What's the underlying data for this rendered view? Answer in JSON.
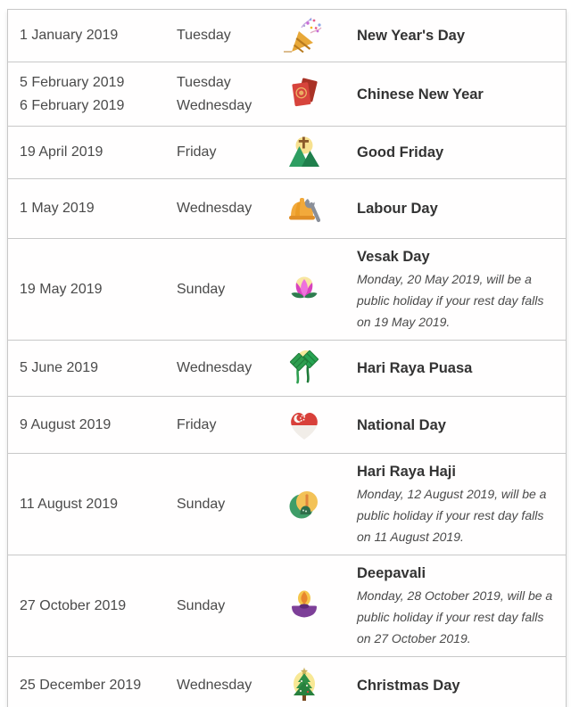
{
  "page": {
    "background_color": "#ffffff",
    "border_color": "#c8c8c8",
    "text_color": "#4a4a4a",
    "title_color": "#333333"
  },
  "table": {
    "rows": [
      {
        "dates": [
          "1 January 2019"
        ],
        "days": [
          "Tuesday"
        ],
        "icon": "party-popper-icon",
        "name": "New Year's Day",
        "note": ""
      },
      {
        "dates": [
          "5 February 2019",
          "6 February 2019"
        ],
        "days": [
          "Tuesday",
          "Wednesday"
        ],
        "icon": "red-envelopes-icon",
        "name": "Chinese New Year",
        "note": ""
      },
      {
        "dates": [
          "19 April 2019"
        ],
        "days": [
          "Friday"
        ],
        "icon": "mountain-cross-icon",
        "name": "Good Friday",
        "note": ""
      },
      {
        "dates": [
          "1 May 2019"
        ],
        "days": [
          "Wednesday"
        ],
        "icon": "hard-hat-wrench-icon",
        "name": "Labour Day",
        "note": ""
      },
      {
        "dates": [
          "19 May 2019"
        ],
        "days": [
          "Sunday"
        ],
        "icon": "lotus-icon",
        "name": "Vesak Day",
        "note": "Monday, 20 May 2019, will be a public holiday if your rest day falls on 19 May 2019."
      },
      {
        "dates": [
          "5 June 2019"
        ],
        "days": [
          "Wednesday"
        ],
        "icon": "ketupat-icon",
        "name": "Hari Raya Puasa",
        "note": ""
      },
      {
        "dates": [
          "9 August 2019"
        ],
        "days": [
          "Friday"
        ],
        "icon": "singapore-flag-heart-icon",
        "name": "National Day",
        "note": ""
      },
      {
        "dates": [
          "11 August 2019"
        ],
        "days": [
          "Sunday"
        ],
        "icon": "mosque-crescent-icon",
        "name": "Hari Raya Haji",
        "note": "Monday, 12 August 2019, will be a public holiday if your rest day falls on 11 August 2019."
      },
      {
        "dates": [
          "27 October 2019"
        ],
        "days": [
          "Sunday"
        ],
        "icon": "diya-lamp-icon",
        "name": "Deepavali",
        "note": "Monday, 28 October 2019, will be a public holiday if your rest day falls on 27 October 2019."
      },
      {
        "dates": [
          "25 December 2019"
        ],
        "days": [
          "Wednesday"
        ],
        "icon": "christmas-tree-icon",
        "name": "Christmas Day",
        "note": ""
      }
    ]
  }
}
